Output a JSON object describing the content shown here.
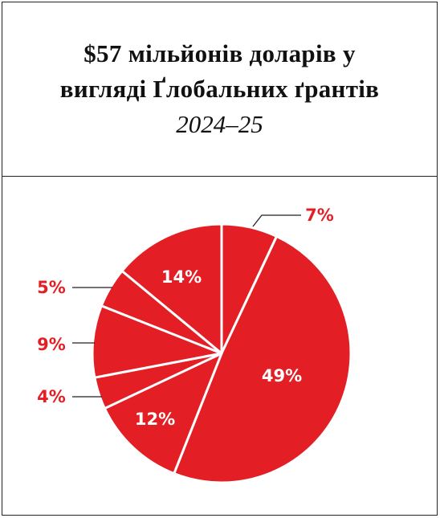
{
  "title": {
    "line1": "$57 мільйонів доларів у",
    "line2": "вигляді Ґлобальних ґрантів",
    "line3": "2024–25"
  },
  "colors": {
    "slice": "#e31e25",
    "slice_stroke": "#ffffff",
    "outside_label": "#e31e25",
    "inside_label": "#ffffff",
    "leader": "#222222"
  },
  "chart_data": {
    "type": "pie",
    "title": "$57 мільйонів доларів у вигляді Ґлобальних ґрантів 2024–25",
    "direction": "clockwise",
    "start": "top",
    "slices": [
      {
        "label": "7%",
        "value": 7,
        "placement": "outside-right"
      },
      {
        "label": "49%",
        "value": 49,
        "placement": "inside"
      },
      {
        "label": "12%",
        "value": 12,
        "placement": "inside"
      },
      {
        "label": "4%",
        "value": 4,
        "placement": "outside-left"
      },
      {
        "label": "9%",
        "value": 9,
        "placement": "outside-left"
      },
      {
        "label": "5%",
        "value": 5,
        "placement": "outside-left"
      },
      {
        "label": "14%",
        "value": 14,
        "placement": "inside"
      }
    ]
  }
}
